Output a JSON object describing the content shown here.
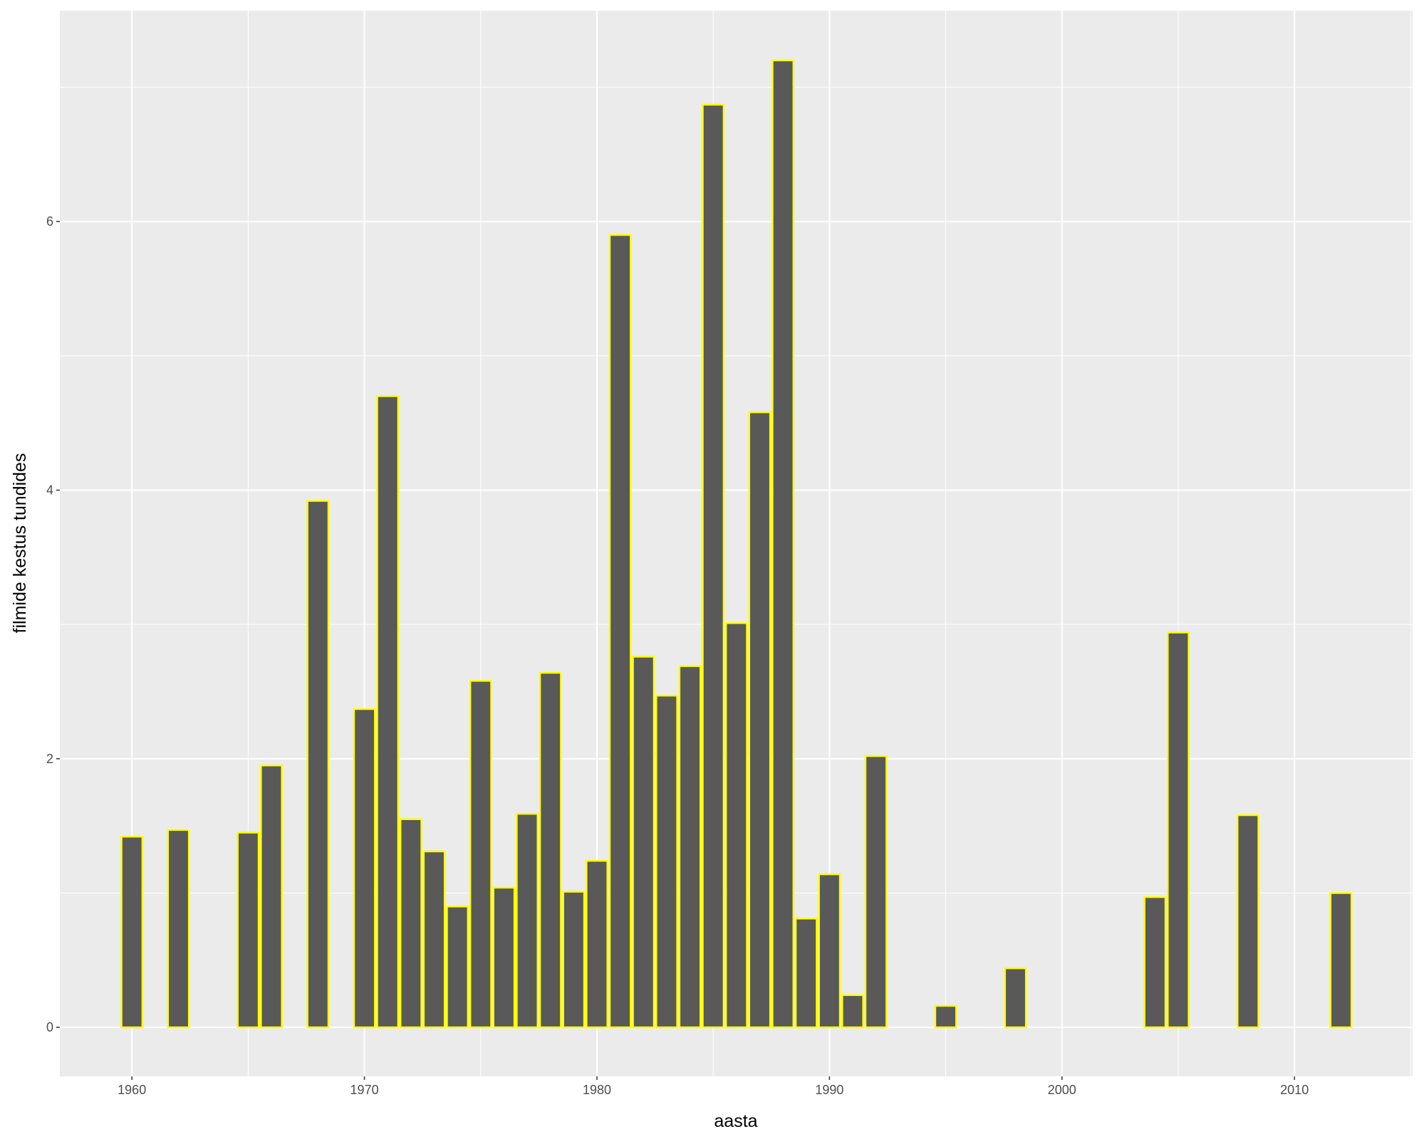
{
  "chart_data": {
    "type": "bar",
    "x": [
      1960,
      1962,
      1965,
      1966,
      1968,
      1970,
      1971,
      1972,
      1973,
      1974,
      1975,
      1976,
      1977,
      1978,
      1979,
      1980,
      1981,
      1982,
      1983,
      1984,
      1985,
      1986,
      1987,
      1988,
      1989,
      1990,
      1991,
      1992,
      1995,
      1998,
      2004,
      2005,
      2008,
      2012
    ],
    "values": [
      1.42,
      1.47,
      1.45,
      1.95,
      3.92,
      2.37,
      4.7,
      1.55,
      1.31,
      0.9,
      2.58,
      1.04,
      1.59,
      2.64,
      1.01,
      1.24,
      5.9,
      2.76,
      2.47,
      2.69,
      6.87,
      3.01,
      4.58,
      7.2,
      0.81,
      1.14,
      0.24,
      2.02,
      0.16,
      0.44,
      0.97,
      2.94,
      1.58,
      1.0
    ],
    "color": "#595959",
    "edge_color": "#ffff00",
    "x_label": "aasta",
    "y_label": "filmide kestus tundides",
    "xlim": [
      1956.9,
      2015.08
    ],
    "xticks": [
      1960,
      1970,
      1980,
      1990,
      2000,
      2010
    ],
    "ylim": [
      -0.365,
      7.57
    ],
    "yticks": [
      0,
      2,
      4,
      6
    ],
    "grid": true
  }
}
